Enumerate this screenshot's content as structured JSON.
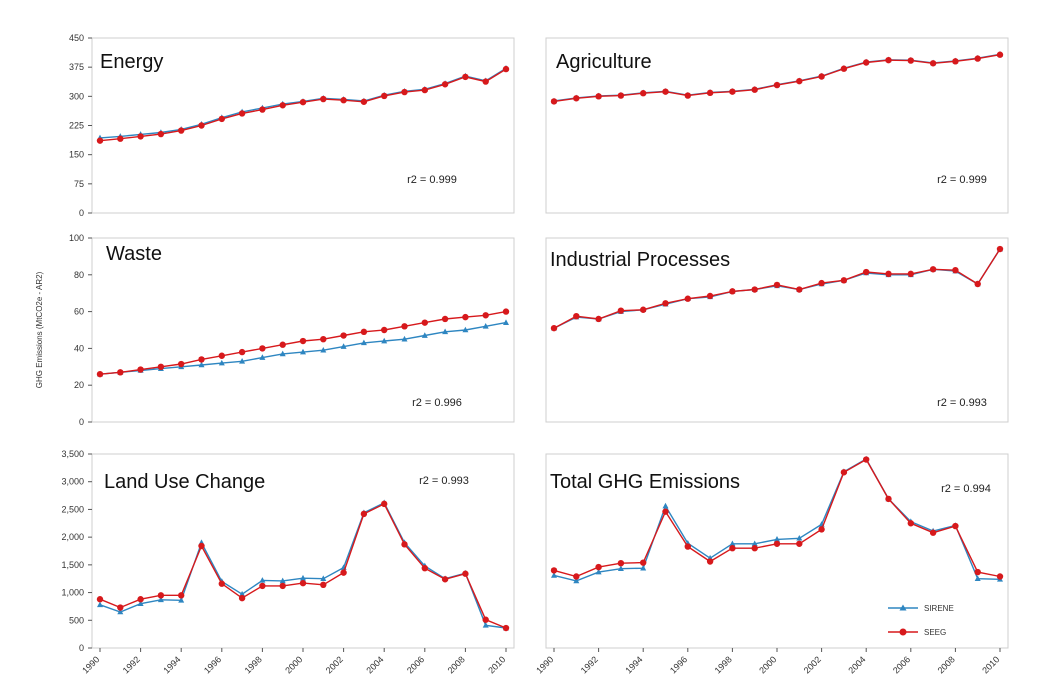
{
  "figure": {
    "ylabel": "GHG Emissions (MtCO2e - AR2)",
    "legend": {
      "items": [
        {
          "name": "SIRENE",
          "color": "#2E86C1",
          "marker": "triangle"
        },
        {
          "name": "SEEG",
          "color": "#D7191C",
          "marker": "circle"
        }
      ],
      "placement": "bottom-right of Total GHG Emissions panel"
    }
  },
  "chart_data": [
    {
      "type": "line",
      "title": "Energy",
      "annotation": "r2 = 0.999",
      "ylim": [
        0,
        450
      ],
      "yticks": [
        0,
        75,
        150,
        225,
        300,
        375,
        450
      ],
      "ytick_labels": [
        "0",
        "75",
        "150",
        "225",
        "300",
        "375",
        "450"
      ],
      "x": [
        1990,
        1991,
        1992,
        1993,
        1994,
        1995,
        1996,
        1997,
        1998,
        1999,
        2000,
        2001,
        2002,
        2003,
        2004,
        2005,
        2006,
        2007,
        2008,
        2009,
        2010
      ],
      "series": [
        {
          "name": "SIRENE",
          "values": [
            193,
            197,
            202,
            207,
            215,
            228,
            245,
            260,
            270,
            280,
            287,
            295,
            292,
            288,
            303,
            313,
            318,
            333,
            352,
            340,
            372
          ]
        },
        {
          "name": "SEEG",
          "values": [
            186,
            191,
            197,
            203,
            212,
            225,
            242,
            256,
            266,
            277,
            285,
            293,
            290,
            286,
            301,
            311,
            316,
            331,
            350,
            338,
            370
          ]
        }
      ]
    },
    {
      "type": "line",
      "title": "Agriculture",
      "annotation": "r2 = 0.999",
      "ylim": [
        0,
        450
      ],
      "yticks": [
        0,
        75,
        150,
        225,
        300,
        375,
        450
      ],
      "ytick_labels": [],
      "x": [
        1990,
        1991,
        1992,
        1993,
        1994,
        1995,
        1996,
        1997,
        1998,
        1999,
        2000,
        2001,
        2002,
        2003,
        2004,
        2005,
        2006,
        2007,
        2008,
        2009,
        2010
      ],
      "series": [
        {
          "name": "SIRENE",
          "values": [
            288,
            296,
            301,
            303,
            309,
            313,
            303,
            310,
            313,
            318,
            330,
            340,
            352,
            372,
            388,
            394,
            393,
            386,
            391,
            398,
            408
          ]
        },
        {
          "name": "SEEG",
          "values": [
            287,
            295,
            300,
            302,
            308,
            312,
            302,
            309,
            312,
            317,
            329,
            339,
            351,
            371,
            387,
            393,
            392,
            385,
            390,
            397,
            407
          ]
        }
      ]
    },
    {
      "type": "line",
      "title": "Waste",
      "annotation": "r2 = 0.996",
      "ylim": [
        0,
        100
      ],
      "yticks": [
        0,
        20,
        40,
        60,
        80,
        100
      ],
      "ytick_labels": [
        "0",
        "20",
        "40",
        "60",
        "80",
        "100"
      ],
      "x": [
        1990,
        1991,
        1992,
        1993,
        1994,
        1995,
        1996,
        1997,
        1998,
        1999,
        2000,
        2001,
        2002,
        2003,
        2004,
        2005,
        2006,
        2007,
        2008,
        2009,
        2010
      ],
      "series": [
        {
          "name": "SIRENE",
          "values": [
            26,
            27,
            28,
            29,
            30,
            31,
            32,
            33,
            35,
            37,
            38,
            39,
            41,
            43,
            44,
            45,
            47,
            49,
            50,
            52,
            54
          ]
        },
        {
          "name": "SEEG",
          "values": [
            26,
            27,
            28.5,
            30,
            31.5,
            34,
            36,
            38,
            40,
            42,
            44,
            45,
            47,
            49,
            50,
            52,
            54,
            56,
            57,
            58,
            60
          ]
        }
      ]
    },
    {
      "type": "line",
      "title": "Industrial Processes",
      "annotation": "r2 = 0.993",
      "ylim": [
        0,
        100
      ],
      "yticks": [
        0,
        20,
        40,
        60,
        80,
        100
      ],
      "ytick_labels": [],
      "x": [
        1990,
        1991,
        1992,
        1993,
        1994,
        1995,
        1996,
        1997,
        1998,
        1999,
        2000,
        2001,
        2002,
        2003,
        2004,
        2005,
        2006,
        2007,
        2008,
        2009,
        2010
      ],
      "series": [
        {
          "name": "SIRENE",
          "values": [
            51,
            57,
            56,
            60,
            61,
            64,
            67,
            68,
            71,
            72,
            74,
            72,
            75,
            77,
            81,
            80,
            80,
            83,
            82,
            75,
            94
          ]
        },
        {
          "name": "SEEG",
          "values": [
            51,
            57.5,
            56,
            60.5,
            61,
            64.5,
            67,
            68.5,
            71,
            72,
            74.5,
            72,
            75.5,
            77,
            81.5,
            80.5,
            80.5,
            83,
            82.5,
            75,
            94
          ]
        }
      ]
    },
    {
      "type": "line",
      "title": "Land Use Change",
      "annotation": "r2 = 0.993",
      "ylim": [
        0,
        3500
      ],
      "yticks": [
        0,
        500,
        1000,
        1500,
        2000,
        2500,
        3000,
        3500
      ],
      "ytick_labels": [
        "0",
        "500",
        "1,000",
        "1,500",
        "2,000",
        "2,500",
        "3,000",
        "3,500"
      ],
      "x": [
        1990,
        1991,
        1992,
        1993,
        1994,
        1995,
        1996,
        1997,
        1998,
        1999,
        2000,
        2001,
        2002,
        2003,
        2004,
        2005,
        2006,
        2007,
        2008,
        2009,
        2010
      ],
      "xtick_labels": [
        "1990",
        "1992",
        "1994",
        "1996",
        "1998",
        "2000",
        "2002",
        "2004",
        "2006",
        "2008",
        "2010"
      ],
      "series": [
        {
          "name": "SIRENE",
          "values": [
            780,
            650,
            800,
            870,
            860,
            1900,
            1200,
            970,
            1220,
            1210,
            1260,
            1250,
            1450,
            2440,
            2620,
            1900,
            1480,
            1250,
            1350,
            410,
            360
          ]
        },
        {
          "name": "SEEG",
          "values": [
            880,
            730,
            880,
            950,
            950,
            1840,
            1160,
            900,
            1120,
            1120,
            1170,
            1140,
            1360,
            2420,
            2600,
            1870,
            1440,
            1240,
            1340,
            510,
            360
          ]
        }
      ]
    },
    {
      "type": "line",
      "title": "Total GHG Emissions",
      "annotation": "r2 = 0.994",
      "ylim": [
        0,
        3500
      ],
      "yticks": [
        0,
        500,
        1000,
        1500,
        2000,
        2500,
        3000,
        3500
      ],
      "ytick_labels": [],
      "x": [
        1990,
        1991,
        1992,
        1993,
        1994,
        1995,
        1996,
        1997,
        1998,
        1999,
        2000,
        2001,
        2002,
        2003,
        2004,
        2005,
        2006,
        2007,
        2008,
        2009,
        2010
      ],
      "xtick_labels": [
        "1990",
        "1992",
        "1994",
        "1996",
        "1998",
        "2000",
        "2002",
        "2004",
        "2006",
        "2008",
        "2010"
      ],
      "series": [
        {
          "name": "SIRENE",
          "values": [
            1310,
            1210,
            1370,
            1430,
            1440,
            2560,
            1890,
            1620,
            1880,
            1880,
            1960,
            1980,
            2230,
            3180,
            3410,
            2690,
            2280,
            2110,
            2210,
            1250,
            1240
          ]
        },
        {
          "name": "SEEG",
          "values": [
            1400,
            1290,
            1460,
            1530,
            1540,
            2460,
            1830,
            1560,
            1800,
            1800,
            1880,
            1880,
            2140,
            3170,
            3400,
            2690,
            2250,
            2080,
            2200,
            1370,
            1290
          ]
        }
      ]
    }
  ]
}
